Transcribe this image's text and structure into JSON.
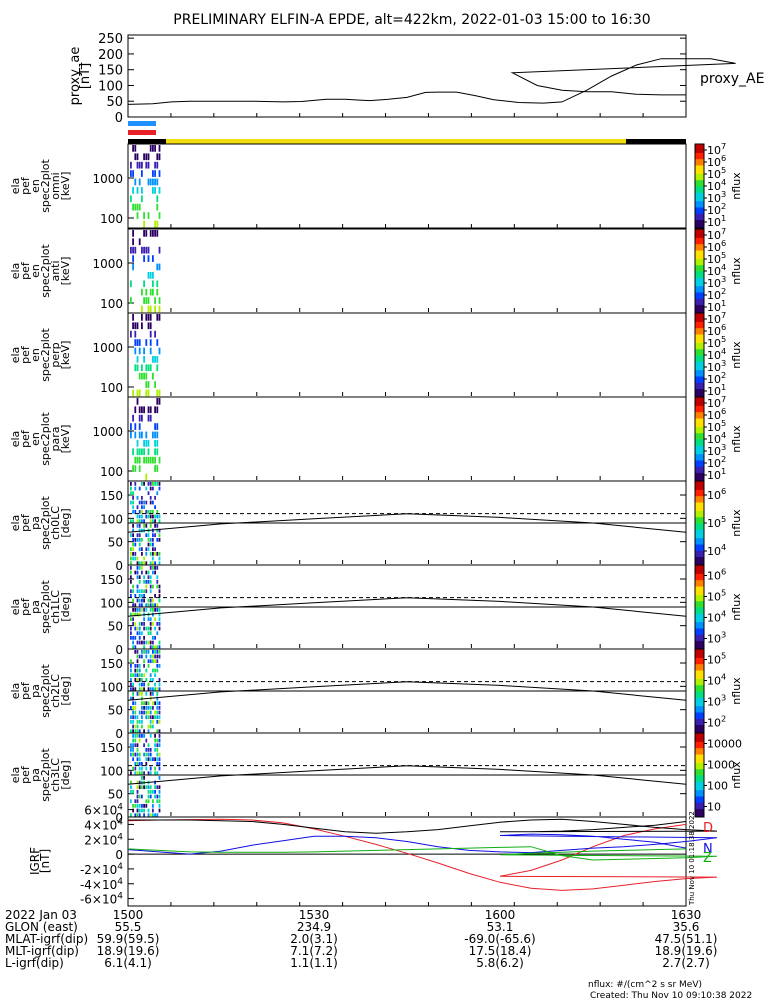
{
  "title": "PRELIMINARY ELFIN-A EPDE, alt=422km, 2022-01-03 15:00 to 16:30",
  "colors": {
    "blue_bar": "#1e90ff",
    "red_bar": "#e8202a",
    "yellow_bar": "#f2dd10",
    "black_bar": "#000000",
    "Bx": "#e8202a",
    "By": "#1010e0",
    "Bz": "#10b010"
  },
  "chart_data": [
    {
      "type": "line",
      "id": "proxy_ae",
      "ylabel": [
        "proxy_ae",
        "[nT]"
      ],
      "legend": "proxy_AE",
      "ylim": [
        0,
        260
      ],
      "yticks": [
        0,
        50,
        100,
        150,
        200,
        250
      ],
      "x": [
        1500,
        1504,
        1507,
        1510,
        1515,
        1520,
        1525,
        1528,
        1532,
        1535,
        1537,
        1539,
        1542,
        1545,
        1548,
        1550,
        1553,
        1556,
        1559,
        1563,
        1567,
        1570,
        1574,
        1578,
        1582,
        1586,
        1590,
        1594,
        1598,
        1602,
        1606,
        1610,
        1614,
        1618,
        1622,
        1626,
        1630
      ],
      "y": [
        40,
        42,
        48,
        50,
        50,
        50,
        48,
        49,
        56,
        56,
        54,
        52,
        56,
        62,
        78,
        79,
        79,
        68,
        55,
        46,
        44,
        48,
        85,
        130,
        165,
        185,
        185,
        185,
        170,
        140,
        100,
        85,
        80,
        80,
        72,
        70,
        70
      ]
    },
    {
      "type": "heatmap",
      "id": "spec_omni",
      "ylabel": [
        "ela",
        "pef",
        "en",
        "spec2plot",
        "omni",
        "[keV]"
      ],
      "yticks": [
        "100",
        "1000"
      ],
      "cbar_label": "nflux",
      "cbar_ticks": [
        "10^1",
        "10^2",
        "10^3",
        "10^4",
        "10^5",
        "10^6",
        "10^7"
      ]
    },
    {
      "type": "heatmap",
      "id": "spec_anti",
      "ylabel": [
        "ela",
        "pef",
        "en",
        "spec2plot",
        "anti",
        "[keV]"
      ],
      "yticks": [
        "100",
        "1000"
      ],
      "cbar_label": "nflux",
      "cbar_ticks": [
        "10^1",
        "10^2",
        "10^3",
        "10^4",
        "10^5",
        "10^6",
        "10^7"
      ]
    },
    {
      "type": "heatmap",
      "id": "spec_perp",
      "ylabel": [
        "ela",
        "pef",
        "en",
        "spec2plot",
        "perp",
        "[keV]"
      ],
      "yticks": [
        "100",
        "1000"
      ],
      "cbar_label": "nflux",
      "cbar_ticks": [
        "10^1",
        "10^2",
        "10^3",
        "10^4",
        "10^5",
        "10^6",
        "10^7"
      ]
    },
    {
      "type": "heatmap",
      "id": "spec_para",
      "ylabel": [
        "ela",
        "pef",
        "en",
        "spec2plot",
        "para",
        "[keV]"
      ],
      "yticks": [
        "100",
        "1000"
      ],
      "cbar_label": "nflux",
      "cbar_ticks": [
        "10^1",
        "10^2",
        "10^3",
        "10^4",
        "10^5",
        "10^6",
        "10^7"
      ]
    },
    {
      "type": "heatmap",
      "id": "pa_ch0",
      "ylabel": [
        "ela",
        "pef",
        "pa",
        "spec2plot",
        "ch0LC",
        "[deg]"
      ],
      "ylim": [
        0,
        180
      ],
      "yticks": [
        "0",
        "50",
        "100",
        "150"
      ],
      "cbar_label": "nflux",
      "cbar_ticks": [
        "10^4",
        "10^5",
        "10^6"
      ],
      "lc_solid": [
        70,
        88,
        99,
        110,
        102,
        90,
        70
      ],
      "lc_dashed": 110,
      "lc_flat": 90
    },
    {
      "type": "heatmap",
      "id": "pa_ch1",
      "ylabel": [
        "ela",
        "pef",
        "pa",
        "spec2plot",
        "ch1LC",
        "[deg]"
      ],
      "ylim": [
        0,
        180
      ],
      "yticks": [
        "0",
        "50",
        "100",
        "150"
      ],
      "cbar_label": "nflux",
      "cbar_ticks": [
        "10^3",
        "10^4",
        "10^5",
        "10^6"
      ],
      "lc_solid": [
        70,
        88,
        99,
        110,
        102,
        90,
        70
      ],
      "lc_dashed": 110,
      "lc_flat": 90
    },
    {
      "type": "heatmap",
      "id": "pa_ch2",
      "ylabel": [
        "ela",
        "pef",
        "pa",
        "spec2plot",
        "ch2LC",
        "[deg]"
      ],
      "ylim": [
        0,
        180
      ],
      "yticks": [
        "0",
        "50",
        "100",
        "150"
      ],
      "cbar_label": "nflux",
      "cbar_ticks": [
        "10^2",
        "10^3",
        "10^4",
        "10^5"
      ],
      "lc_solid": [
        70,
        88,
        99,
        110,
        102,
        90,
        70
      ],
      "lc_dashed": 110,
      "lc_flat": 90
    },
    {
      "type": "heatmap",
      "id": "pa_ch3",
      "ylabel": [
        "ela",
        "pef",
        "pa",
        "spec2plot",
        "ch3LC",
        "[deg]"
      ],
      "ylim": [
        0,
        180
      ],
      "yticks": [
        "0",
        "50",
        "100",
        "150"
      ],
      "cbar_label": "nflux",
      "cbar_ticks": [
        "10",
        "100",
        "1000",
        "10000"
      ],
      "lc_solid": [
        70,
        88,
        99,
        110,
        102,
        90,
        70
      ],
      "lc_dashed": 110,
      "lc_flat": 90
    },
    {
      "type": "line",
      "id": "igrf",
      "ylabel": [
        "IGRF",
        "[nT]"
      ],
      "ylim": [
        -70000,
        50000
      ],
      "yticks": [
        "-6×10^4",
        "-4×10^4",
        "-2×10^4",
        "0",
        "2×10^4",
        "4×10^4",
        "6×10^4"
      ],
      "x": [
        1500,
        1505,
        1510,
        1515,
        1520,
        1525,
        1530,
        1535,
        1540,
        1545,
        1550,
        1555,
        1560,
        1565,
        1570,
        1575,
        1580,
        1585,
        1590,
        1595,
        1600,
        1605,
        1610,
        1615,
        1620,
        1625,
        1630
      ],
      "series": [
        {
          "name": "D",
          "y": [
            45000,
            46000,
            46500,
            47000,
            46000,
            42000,
            34000,
            24000,
            13000,
            1000,
            -12000,
            -26000,
            -38000,
            -46000,
            -49000,
            -47000,
            -42000,
            -37000,
            -33000,
            -31000,
            -30000,
            -22000,
            -8000,
            10000,
            25000,
            34000,
            40000
          ]
        },
        {
          "name": "N",
          "y": [
            6000,
            3000,
            0,
            4000,
            12000,
            18000,
            24000,
            24000,
            22000,
            17000,
            10000,
            5000,
            3000,
            2000,
            5000,
            8000,
            10000,
            13000,
            17000,
            22000,
            25000,
            27000,
            26000,
            24000,
            20000,
            16000,
            8000
          ]
        },
        {
          "name": "Z",
          "y": [
            7000,
            5000,
            3000,
            2500,
            2500,
            2500,
            3000,
            4000,
            5000,
            6000,
            7000,
            8000,
            9000,
            10000,
            -2000,
            -8000,
            -7000,
            -6000,
            -5000,
            -3000,
            -1000,
            1000,
            2500,
            4000,
            5000,
            6000,
            7000
          ]
        },
        {
          "name": "total",
          "y": [
            46000,
            46000,
            46000,
            45000,
            44000,
            40000,
            35000,
            30000,
            28000,
            30000,
            33000,
            38000,
            43000,
            46000,
            47000,
            44000,
            40000,
            36000,
            33000,
            31000,
            30000,
            30000,
            31000,
            33000,
            36000,
            39000,
            44000
          ]
        }
      ]
    }
  ],
  "x_axis": {
    "labels": [
      "2022 Jan 03",
      "GLON (east)",
      "MLAT-igrf(dip)",
      "MLT-igrf(dip)",
      "L-igrf(dip)"
    ],
    "columns": [
      [
        "1500",
        "55.5",
        "59.9(59.5)",
        "18.9(19.6)",
        "6.1(4.1)"
      ],
      [
        "1530",
        "234.9",
        "2.0(3.1)",
        "7.1(7.2)",
        "1.1(1.1)"
      ],
      [
        "1600",
        "53.1",
        "-69.0(-65.6)",
        "17.5(18.4)",
        "5.8(6.2)"
      ],
      [
        "1630",
        "35.6",
        "47.5(51.1)",
        "18.9(19.6)",
        "2.7(2.7)"
      ]
    ]
  },
  "footer": {
    "units": "nflux: #/(cm^2 s sr MeV)",
    "created": "Created: Thu Nov 10 09:10:38 2022",
    "side_stamp": "Thu Nov 10 01:18:38 2022"
  }
}
